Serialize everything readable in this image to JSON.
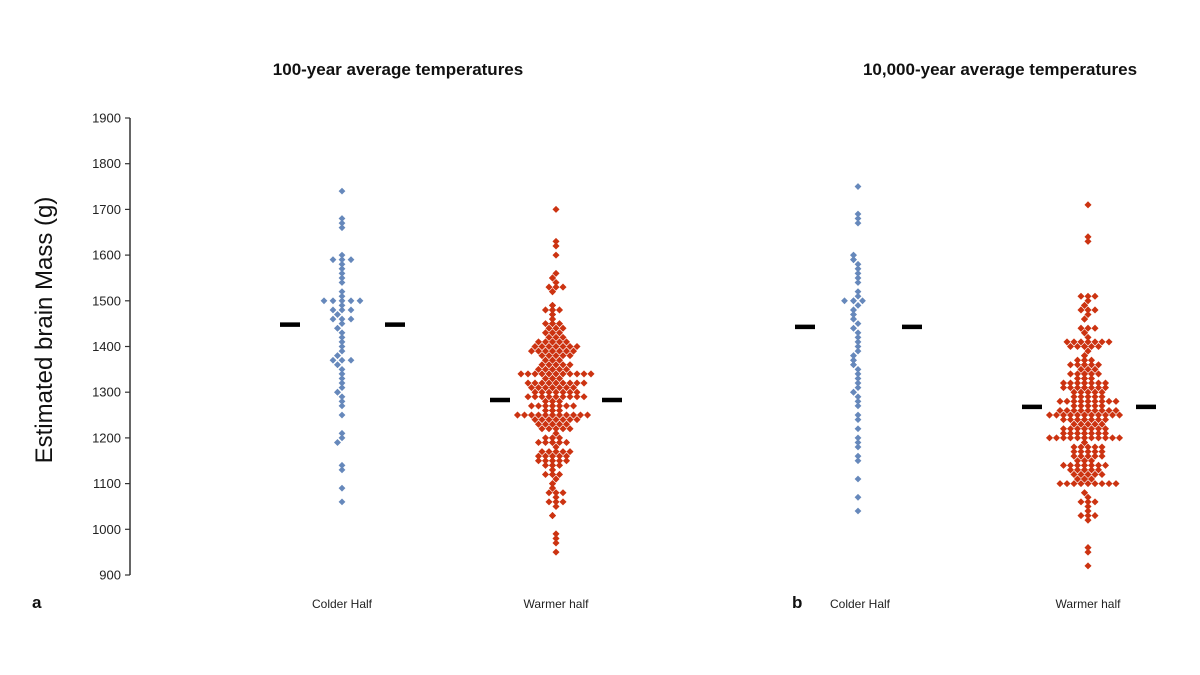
{
  "y_axis_label": "Estimated brain Mass (g)",
  "colors": {
    "colder": "#6688bb",
    "warmer": "#cc3311",
    "mean": "#000000",
    "axis": "#333333"
  },
  "chart_data": [
    {
      "type": "scatter",
      "panel_label": "a",
      "title": "100-year average temperatures",
      "ylabel": "Estimated brain Mass (g)",
      "ylim": [
        900,
        1900
      ],
      "yticks": [
        "900",
        "1000",
        "1100",
        "1200",
        "1300",
        "1400",
        "1500",
        "1600",
        "1700",
        "1800",
        "1900"
      ],
      "categories": [
        "Colder Half",
        "Warmer half"
      ],
      "series": [
        {
          "name": "Colder Half",
          "mean": 1448,
          "values": [
            1740,
            1675,
            1665,
            1660,
            1600,
            1590,
            1590,
            1590,
            1580,
            1570,
            1560,
            1550,
            1540,
            1520,
            1510,
            1500,
            1500,
            1500,
            1500,
            1495,
            1490,
            1480,
            1480,
            1480,
            1470,
            1470,
            1460,
            1460,
            1460,
            1450,
            1440,
            1440,
            1430,
            1420,
            1410,
            1400,
            1390,
            1380,
            1380,
            1370,
            1370,
            1370,
            1360,
            1360,
            1350,
            1340,
            1330,
            1320,
            1310,
            1300,
            1300,
            1290,
            1280,
            1270,
            1250,
            1210,
            1200,
            1190,
            1190,
            1140,
            1130,
            1090,
            1060
          ]
        },
        {
          "name": "Warmer half",
          "mean": 1283,
          "min": 945,
          "max": 1700
        }
      ]
    },
    {
      "type": "scatter",
      "panel_label": "b",
      "title": "10,000-year average temperatures",
      "ylim": [
        900,
        1900
      ],
      "categories": [
        "Colder Half",
        "Warmer half"
      ],
      "series": [
        {
          "name": "Colder Half",
          "mean": 1443,
          "values": [
            1750,
            1685,
            1675,
            1670,
            1600,
            1595,
            1590,
            1590,
            1580,
            1570,
            1560,
            1550,
            1540,
            1520,
            1510,
            1500,
            1500,
            1500,
            1495,
            1490,
            1480,
            1480,
            1470,
            1470,
            1460,
            1460,
            1450,
            1440,
            1440,
            1430,
            1420,
            1410,
            1400,
            1390,
            1380,
            1380,
            1370,
            1370,
            1360,
            1360,
            1350,
            1340,
            1330,
            1320,
            1310,
            1300,
            1300,
            1290,
            1280,
            1270,
            1250,
            1240,
            1220,
            1200,
            1190,
            1180,
            1160,
            1150,
            1110,
            1070,
            1040
          ]
        },
        {
          "name": "Warmer half",
          "mean": 1268,
          "min": 920,
          "max": 1710
        }
      ]
    }
  ]
}
